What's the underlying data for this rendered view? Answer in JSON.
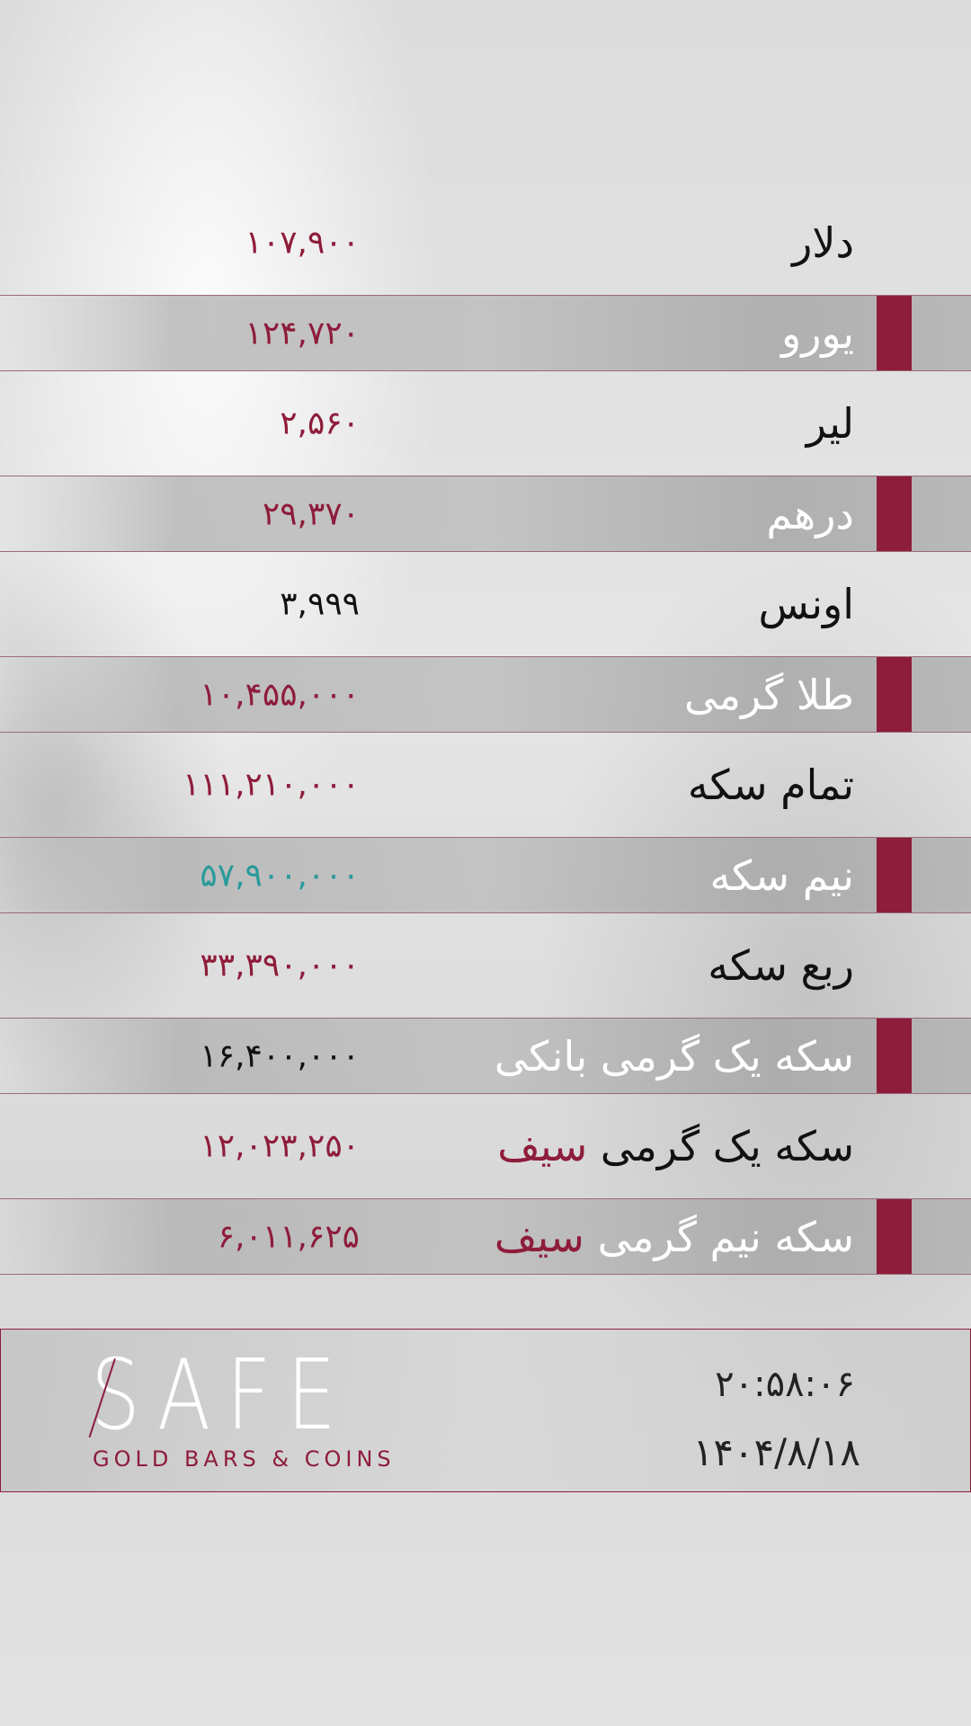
{
  "accent_color": "#8e1c3b",
  "rows": [
    {
      "label": "دلار",
      "value": "۱۰۷,۹۰۰",
      "value_color": "#8e1c3b",
      "highlight": false
    },
    {
      "label": "یورو",
      "value": "۱۲۴,۷۲۰",
      "value_color": "#8e1c3b",
      "highlight": true
    },
    {
      "label": "لیر",
      "value": "۲,۵۶۰",
      "value_color": "#8e1c3b",
      "highlight": false
    },
    {
      "label": "درهم",
      "value": "۲۹,۳۷۰",
      "value_color": "#8e1c3b",
      "highlight": true
    },
    {
      "label": "اونس",
      "value": "۳,۹۹۹",
      "value_color": "#111111",
      "highlight": false
    },
    {
      "label": "طلا گرمی",
      "value": "۱۰,۴۵۵,۰۰۰",
      "value_color": "#8e1c3b",
      "highlight": true
    },
    {
      "label": "تمام سکه",
      "value": "۱۱۱,۲۱۰,۰۰۰",
      "value_color": "#8e1c3b",
      "highlight": false
    },
    {
      "label": "نیم سکه",
      "value": "۵۷,۹۰۰,۰۰۰",
      "value_color": "#2a9a9a",
      "highlight": true
    },
    {
      "label": "ربع سکه",
      "value": "۳۳,۳۹۰,۰۰۰",
      "value_color": "#8e1c3b",
      "highlight": false
    },
    {
      "label": "سکه یک گرمی بانکی",
      "value": "۱۶,۴۰۰,۰۰۰",
      "value_color": "#111111",
      "highlight": true
    },
    {
      "label": "سکه یک گرمی",
      "label_accent": "سیف",
      "value": "۱۲,۰۲۳,۲۵۰",
      "value_color": "#8e1c3b",
      "highlight": false
    },
    {
      "label": "سکه نیم گرمی",
      "label_accent": "سیف",
      "value": "۶,۰۱۱,۶۲۵",
      "value_color": "#8e1c3b",
      "highlight": true
    }
  ],
  "footer": {
    "logo_text": "SAFE",
    "logo_subtitle": "GOLD BARS & COINS",
    "time": "۲۰:۵۸:۰۶",
    "date": "۱۴۰۴/۸/۱۸"
  }
}
